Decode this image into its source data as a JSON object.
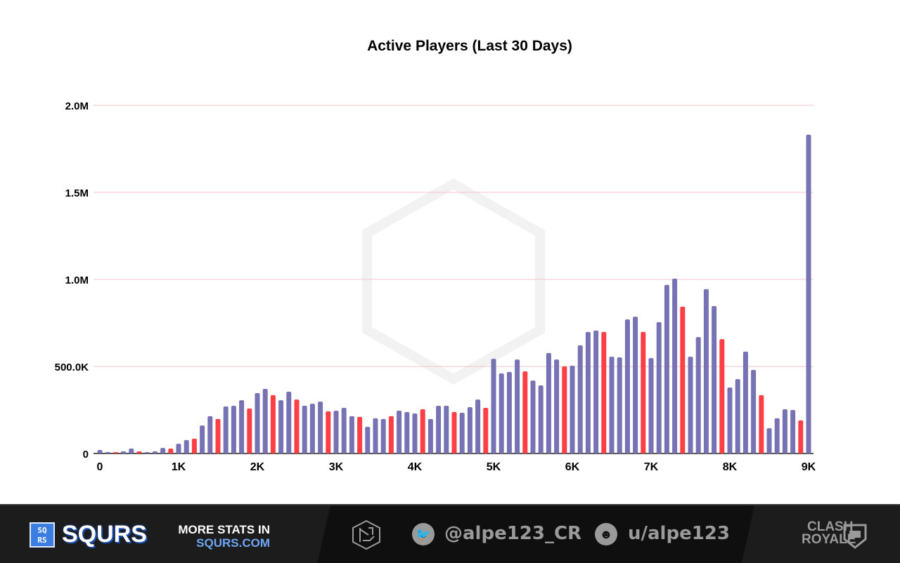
{
  "chart_data": {
    "type": "bar",
    "title": "Active Players (Last 30 Days)",
    "xlabel": "",
    "ylabel": "",
    "xlim": [
      0,
      9000
    ],
    "ylim": [
      0,
      2000000
    ],
    "x_ticks": [
      "0",
      "1K",
      "2K",
      "3K",
      "4K",
      "5K",
      "6K",
      "7K",
      "8K",
      "9K"
    ],
    "y_ticks": [
      "0",
      "500.0K",
      "1.0M",
      "1.5M",
      "2.0M"
    ],
    "grid": true,
    "colors": {
      "default": "#7672b4",
      "highlight": "#fe3f45"
    },
    "x": [
      0,
      100,
      200,
      300,
      400,
      500,
      600,
      700,
      800,
      900,
      1000,
      1100,
      1200,
      1300,
      1400,
      1500,
      1600,
      1700,
      1800,
      1900,
      2000,
      2100,
      2200,
      2300,
      2400,
      2500,
      2600,
      2700,
      2800,
      2900,
      3000,
      3100,
      3200,
      3300,
      3400,
      3500,
      3600,
      3700,
      3800,
      3900,
      4000,
      4100,
      4200,
      4300,
      4400,
      4500,
      4600,
      4700,
      4800,
      4900,
      5000,
      5100,
      5200,
      5300,
      5400,
      5500,
      5600,
      5700,
      5800,
      5900,
      6000,
      6100,
      6200,
      6300,
      6400,
      6500,
      6600,
      6700,
      6800,
      6900,
      7000,
      7100,
      7200,
      7300,
      7400,
      7500,
      7600,
      7700,
      7800,
      7900,
      8000,
      8100,
      8200,
      8300,
      8400,
      8500,
      8600,
      8700,
      8800,
      8900,
      9000
    ],
    "values": [
      20000,
      8000,
      8000,
      12000,
      28000,
      12000,
      8000,
      12000,
      32000,
      28000,
      56000,
      77000,
      85000,
      161000,
      214000,
      198000,
      270000,
      274000,
      306000,
      258000,
      347000,
      371000,
      335000,
      306000,
      355000,
      310000,
      274000,
      286000,
      298000,
      242000,
      246000,
      262000,
      214000,
      210000,
      153000,
      202000,
      198000,
      214000,
      246000,
      238000,
      230000,
      254000,
      198000,
      274000,
      274000,
      238000,
      234000,
      266000,
      310000,
      262000,
      544000,
      460000,
      468000,
      540000,
      472000,
      419000,
      391000,
      577000,
      540000,
      500000,
      504000,
      621000,
      698000,
      706000,
      698000,
      556000,
      552000,
      770000,
      786000,
      698000,
      548000,
      754000,
      968000,
      1004000,
      843000,
      556000,
      669000,
      944000,
      847000,
      657000,
      379000,
      427000,
      585000,
      480000,
      335000,
      145000,
      202000,
      254000,
      250000,
      190000,
      1831000
    ],
    "highlighted_x": [
      200,
      500,
      900,
      1200,
      1500,
      1900,
      2200,
      2500,
      2900,
      3300,
      3700,
      4100,
      4500,
      4900,
      5400,
      5900,
      6400,
      6900,
      7400,
      7900,
      8400,
      8900
    ]
  },
  "footer": {
    "brand": "SQURS",
    "brand_box_top": "SQ",
    "brand_box_bottom": "RS",
    "more_line1": "MORE STATS IN",
    "more_line2": "SQURS.COM",
    "twitter": "@alpe123_CR",
    "reddit": "u/alpe123",
    "game_line1": "CLASH",
    "game_line2": "ROYALE"
  }
}
